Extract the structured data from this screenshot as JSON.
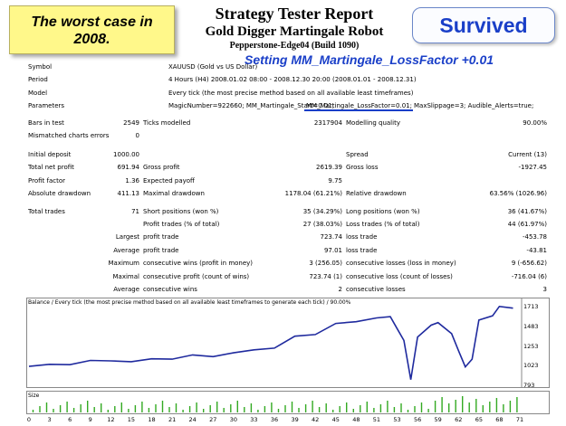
{
  "note": {
    "line1": "The worst case in",
    "line2": "2008."
  },
  "header": {
    "title": "Strategy Tester Report",
    "subtitle": "Gold Digger Martingale Robot",
    "build": "Pepperstone-Edge04 (Build 1090)"
  },
  "badge": {
    "label": "Survived"
  },
  "setting": {
    "label": "Setting MM_Martingale_LossFactor +0.01"
  },
  "info": {
    "symbol_label": "Symbol",
    "symbol_value": "XAUUSD (Gold vs US Dollar)",
    "period_label": "Period",
    "period_value": "4 Hours (H4) 2008.01.02 08:00 - 2008.12.30 20:00 (2008.01.01 - 2008.12.31)",
    "model_label": "Model",
    "model_value": "Every tick (the most precise method based on all available least timeframes)",
    "params_label": "Parameters",
    "params_a": "MagicNumber=922660; MM_Martingale_Start=0.01;",
    "params_b": "MM_Martingale_LossFactor=0.01;",
    "params_c": "MaxSlippage=3; Audible_Alerts=true;"
  },
  "bars": {
    "bars_label": "Bars in test",
    "bars_value": "2549",
    "ticks_label": "Ticks modelled",
    "ticks_value": "2317904",
    "quality_label": "Modelling quality",
    "quality_value": "90.00%",
    "mismatch_label": "Mismatched charts errors",
    "mismatch_value": "0"
  },
  "stats": {
    "deposit_label": "Initial deposit",
    "deposit_value": "1000.00",
    "spread_label": "Spread",
    "spread_value": "Current (13)",
    "net_label": "Total net profit",
    "net_value": "691.94",
    "gross_profit_label": "Gross profit",
    "gross_profit_value": "2619.39",
    "gross_loss_label": "Gross loss",
    "gross_loss_value": "-1927.45",
    "pf_label": "Profit factor",
    "pf_value": "1.36",
    "ep_label": "Expected payoff",
    "ep_value": "9.75",
    "abs_dd_label": "Absolute drawdown",
    "abs_dd_value": "411.13",
    "max_dd_label": "Maximal drawdown",
    "max_dd_value": "1178.04 (61.21%)",
    "rel_dd_label": "Relative drawdown",
    "rel_dd_value": "63.56% (1026.96)",
    "trades_label": "Total trades",
    "trades_value": "71",
    "short_label": "Short positions (won %)",
    "short_value": "35 (34.29%)",
    "long_label": "Long positions (won %)",
    "long_value": "36 (41.67%)",
    "pt_label": "Profit trades (% of total)",
    "pt_value": "27 (38.03%)",
    "lt_label": "Loss trades (% of total)",
    "lt_value": "44 (61.97%)",
    "largest_label": "Largest",
    "largest_pt_label": "profit trade",
    "largest_pt_value": "723.74",
    "largest_lt_label": "loss trade",
    "largest_lt_value": "-453.78",
    "average_label": "Average",
    "average_pt_label": "profit trade",
    "average_pt_value": "97.01",
    "average_lt_label": "loss trade",
    "average_lt_value": "-43.81",
    "maximum_label": "Maximum",
    "max_cw_label": "consecutive wins (profit in money)",
    "max_cw_value": "3 (256.05)",
    "max_cl_label": "consecutive losses (loss in money)",
    "max_cl_value": "9 (-656.62)",
    "maximal_label": "Maximal",
    "mxl_cw_label": "consecutive profit (count of wins)",
    "mxl_cw_value": "723.74 (1)",
    "mxl_cl_label": "consecutive loss (count of losses)",
    "mxl_cl_value": "-716.04 (6)",
    "avg2_label": "Average",
    "avg_cw_label": "consecutive wins",
    "avg_cw_value": "2",
    "avg_cl_label": "consecutive losses",
    "avg_cl_value": "3"
  },
  "chart": {
    "caption": "Balance / Every tick (the most precise method based on all available least timeframes to generate each tick) / 90.00%",
    "size_label": "Size",
    "y_ticks": [
      "1713",
      "1483",
      "1253",
      "1023",
      "793"
    ],
    "x_ticks": [
      "0",
      "3",
      "6",
      "9",
      "12",
      "15",
      "18",
      "21",
      "24",
      "27",
      "30",
      "33",
      "36",
      "39",
      "42",
      "45",
      "48",
      "51",
      "53",
      "56",
      "59",
      "62",
      "65",
      "68",
      "71"
    ],
    "line_color": "#1f2a9e",
    "size_color": "#33aa22"
  },
  "chart_data": {
    "type": "line",
    "x": [
      0,
      3,
      6,
      9,
      12,
      15,
      18,
      21,
      24,
      27,
      30,
      33,
      36,
      39,
      42,
      45,
      48,
      51,
      53,
      54,
      55,
      56,
      57,
      59,
      60,
      62,
      63,
      64,
      65,
      66,
      68,
      69,
      71
    ],
    "series": [
      {
        "values": [
          1015,
          1040,
          1035,
          1085,
          1080,
          1070,
          1105,
          1100,
          1150,
          1130,
          1175,
          1210,
          1230,
          1370,
          1390,
          1520,
          1540,
          1585,
          1600,
          1460,
          1320,
          860,
          1360,
          1500,
          1530,
          1400,
          1200,
          1010,
          1100,
          1560,
          1610,
          1720,
          1700
        ]
      }
    ],
    "ylim": [
      793,
      1750
    ],
    "xlim": [
      0,
      72
    ],
    "grid": false
  }
}
